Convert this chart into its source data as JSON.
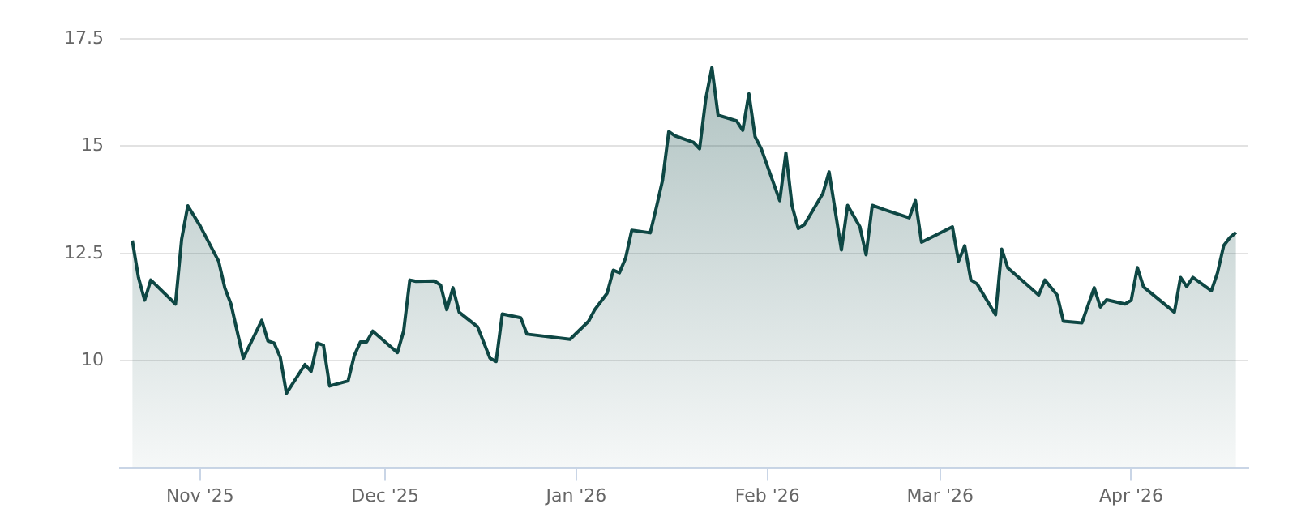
{
  "chart_data": {
    "type": "area",
    "grid": "y",
    "legend": false,
    "xlim": [
      "2025-10-19",
      "2026-04-20"
    ],
    "xticks": [
      {
        "value": "2025-11-01",
        "label": "Nov '25"
      },
      {
        "value": "2025-12-01",
        "label": "Dec '25"
      },
      {
        "value": "2026-01-01",
        "label": "Jan '26"
      },
      {
        "value": "2026-02-01",
        "label": "Feb '26"
      },
      {
        "value": "2026-03-01",
        "label": "Mar '26"
      },
      {
        "value": "2026-04-01",
        "label": "Apr '26"
      }
    ],
    "ylim": [
      7.5,
      17.5
    ],
    "yticks": [
      10,
      12.5,
      15,
      17.5
    ],
    "x": [
      "2025-10-21",
      "2025-10-22",
      "2025-10-23",
      "2025-10-24",
      "2025-10-28",
      "2025-10-29",
      "2025-10-30",
      "2025-11-01",
      "2025-11-04",
      "2025-11-05",
      "2025-11-06",
      "2025-11-08",
      "2025-11-11",
      "2025-11-12",
      "2025-11-13",
      "2025-11-14",
      "2025-11-15",
      "2025-11-18",
      "2025-11-19",
      "2025-11-20",
      "2025-11-21",
      "2025-11-22",
      "2025-11-25",
      "2025-11-26",
      "2025-11-27",
      "2025-11-28",
      "2025-11-29",
      "2025-12-03",
      "2025-12-04",
      "2025-12-05",
      "2025-12-06",
      "2025-12-09",
      "2025-12-10",
      "2025-12-11",
      "2025-12-12",
      "2025-12-13",
      "2025-12-16",
      "2025-12-18",
      "2025-12-19",
      "2025-12-20",
      "2025-12-23",
      "2025-12-24",
      "2025-12-31",
      "2026-01-03",
      "2026-01-04",
      "2026-01-06",
      "2026-01-07",
      "2026-01-08",
      "2026-01-09",
      "2026-01-10",
      "2026-01-13",
      "2026-01-14",
      "2026-01-15",
      "2026-01-16",
      "2026-01-17",
      "2026-01-20",
      "2026-01-21",
      "2026-01-22",
      "2026-01-23",
      "2026-01-24",
      "2026-01-27",
      "2026-01-28",
      "2026-01-29",
      "2026-01-30",
      "2026-01-31",
      "2026-02-03",
      "2026-02-04",
      "2026-02-05",
      "2026-02-06",
      "2026-02-07",
      "2026-02-10",
      "2026-02-11",
      "2026-02-13",
      "2026-02-14",
      "2026-02-16",
      "2026-02-17",
      "2026-02-18",
      "2026-02-20",
      "2026-02-24",
      "2026-02-25",
      "2026-02-26",
      "2026-03-03",
      "2026-03-04",
      "2026-03-05",
      "2026-03-06",
      "2026-03-07",
      "2026-03-10",
      "2026-03-11",
      "2026-03-12",
      "2026-03-17",
      "2026-03-18",
      "2026-03-20",
      "2026-03-21",
      "2026-03-24",
      "2026-03-26",
      "2026-03-27",
      "2026-03-28",
      "2026-03-31",
      "2026-04-01",
      "2026-04-02",
      "2026-04-03",
      "2026-04-08",
      "2026-04-09",
      "2026-04-10",
      "2026-04-11",
      "2026-04-14",
      "2026-04-15",
      "2026-04-16",
      "2026-04-17",
      "2026-04-18"
    ],
    "series": [
      {
        "color": "#0e4744",
        "values": [
          12.8,
          11.94,
          11.41,
          11.88,
          11.32,
          12.83,
          13.61,
          13.14,
          12.32,
          11.7,
          11.32,
          10.06,
          10.94,
          10.46,
          10.41,
          10.08,
          9.24,
          9.91,
          9.75,
          10.41,
          10.36,
          9.41,
          9.53,
          10.12,
          10.44,
          10.44,
          10.69,
          10.19,
          10.69,
          11.88,
          11.85,
          11.86,
          11.76,
          11.19,
          11.7,
          11.13,
          10.79,
          10.06,
          9.98,
          11.09,
          11.0,
          10.62,
          10.5,
          10.92,
          11.19,
          11.57,
          12.11,
          12.05,
          12.39,
          13.04,
          12.98,
          13.58,
          14.21,
          15.34,
          15.24,
          15.09,
          14.94,
          16.1,
          16.83,
          15.72,
          15.59,
          15.37,
          16.22,
          15.22,
          14.94,
          13.73,
          14.84,
          13.61,
          13.08,
          13.17,
          13.9,
          14.4,
          12.58,
          13.62,
          13.12,
          12.47,
          13.62,
          13.52,
          13.33,
          13.73,
          12.76,
          13.12,
          12.32,
          12.68,
          11.88,
          11.79,
          11.07,
          12.6,
          12.16,
          11.53,
          11.88,
          11.53,
          10.92,
          10.88,
          11.7,
          11.25,
          11.42,
          11.32,
          11.41,
          12.17,
          11.72,
          11.13,
          11.94,
          11.73,
          11.94,
          11.63,
          12.05,
          12.68,
          12.87,
          12.99
        ]
      }
    ]
  }
}
